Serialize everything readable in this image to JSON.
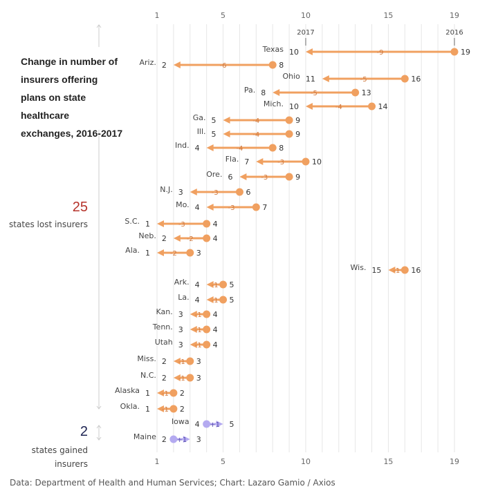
{
  "title": "Change in number of insurers offering plans on state healthcare exchanges, 2016-2017",
  "summary": {
    "lost_count": "25",
    "lost_label": "states lost insurers",
    "gained_count": "2",
    "gained_label": "states gained insurers"
  },
  "source": "Data: Department of Health and Human Services; Chart: Lazaro Gamio / Axios",
  "colors": {
    "loss": "#f0a060",
    "gain": "#b4aaf0",
    "lost_count": "#b5322a",
    "gained_count": "#1d2352",
    "grid": "#e6e6e6"
  },
  "chart_data": {
    "type": "arrow-dumbbell",
    "title": "Change in number of insurers offering plans on state healthcare exchanges, 2016-2017",
    "x_ticks": [
      1,
      5,
      10,
      15,
      19
    ],
    "xlim": [
      1,
      19
    ],
    "grid": "vertical, every integer",
    "start_label": "2016",
    "end_label": "2017",
    "rows": [
      {
        "state": "Texas",
        "y2016": 19,
        "y2017": 10,
        "change": "-9"
      },
      {
        "state": "Ariz.",
        "y2016": 8,
        "y2017": 2,
        "change": "-6"
      },
      {
        "state": "Ohio",
        "y2016": 16,
        "y2017": 11,
        "change": "-5"
      },
      {
        "state": "Pa.",
        "y2016": 13,
        "y2017": 8,
        "change": "-5"
      },
      {
        "state": "Mich.",
        "y2016": 14,
        "y2017": 10,
        "change": "-4"
      },
      {
        "state": "Ga.",
        "y2016": 9,
        "y2017": 5,
        "change": "-4"
      },
      {
        "state": "Ill.",
        "y2016": 9,
        "y2017": 5,
        "change": "-4"
      },
      {
        "state": "Ind.",
        "y2016": 8,
        "y2017": 4,
        "change": "-4"
      },
      {
        "state": "Fla.",
        "y2016": 10,
        "y2017": 7,
        "change": "-3"
      },
      {
        "state": "Ore.",
        "y2016": 9,
        "y2017": 6,
        "change": "-3"
      },
      {
        "state": "N.J.",
        "y2016": 6,
        "y2017": 3,
        "change": "-3"
      },
      {
        "state": "Mo.",
        "y2016": 7,
        "y2017": 4,
        "change": "-3"
      },
      {
        "state": "S.C.",
        "y2016": 4,
        "y2017": 1,
        "change": "-3"
      },
      {
        "state": "Neb.",
        "y2016": 4,
        "y2017": 2,
        "change": "-2"
      },
      {
        "state": "Ala.",
        "y2016": 3,
        "y2017": 1,
        "change": "-2"
      },
      {
        "state": "Wis.",
        "y2016": 16,
        "y2017": 15,
        "change": "-1"
      },
      {
        "state": "Ark.",
        "y2016": 5,
        "y2017": 4,
        "change": "-1"
      },
      {
        "state": "La.",
        "y2016": 5,
        "y2017": 4,
        "change": "-1"
      },
      {
        "state": "Kan.",
        "y2016": 4,
        "y2017": 3,
        "change": "-1"
      },
      {
        "state": "Tenn.",
        "y2016": 4,
        "y2017": 3,
        "change": "-1"
      },
      {
        "state": "Utah",
        "y2016": 4,
        "y2017": 3,
        "change": "-1"
      },
      {
        "state": "Miss.",
        "y2016": 3,
        "y2017": 2,
        "change": "-1"
      },
      {
        "state": "N.C.",
        "y2016": 3,
        "y2017": 2,
        "change": "-1"
      },
      {
        "state": "Alaska",
        "y2016": 2,
        "y2017": 1,
        "change": "-1"
      },
      {
        "state": "Okla.",
        "y2016": 2,
        "y2017": 1,
        "change": "-1"
      },
      {
        "state": "Iowa",
        "y2016": 4,
        "y2017": 5,
        "change": "+1"
      },
      {
        "state": "Maine",
        "y2016": 2,
        "y2017": 3,
        "change": "+1"
      }
    ]
  }
}
